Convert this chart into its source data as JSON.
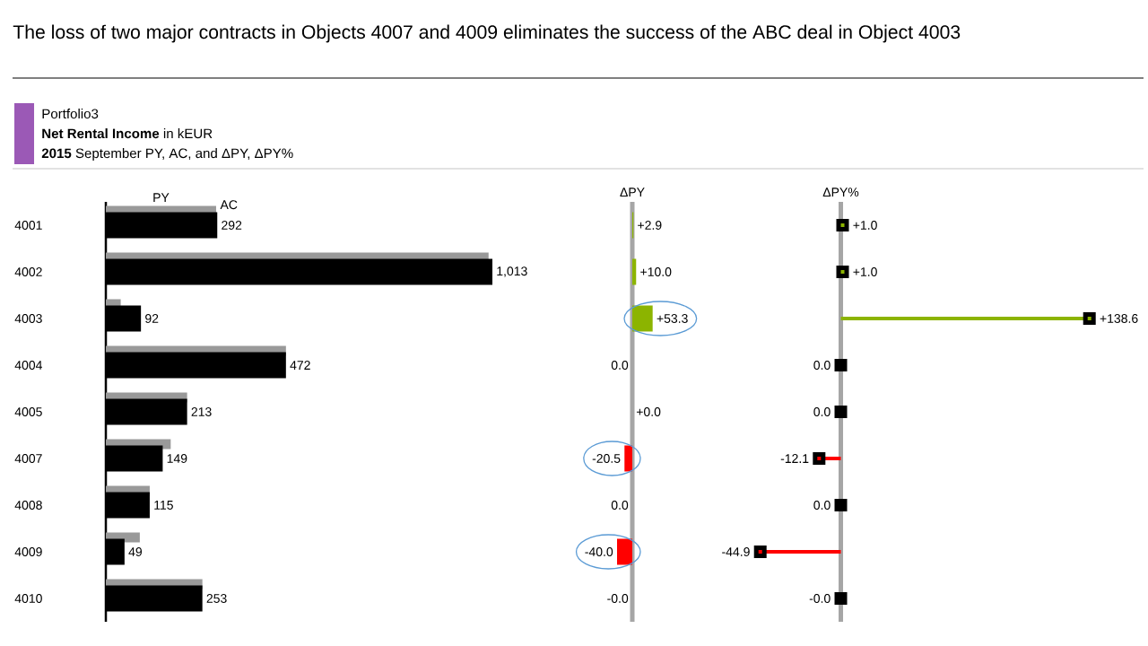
{
  "chart_data": [
    {
      "type": "bar",
      "orientation": "horizontal",
      "title": "The loss of two major contracts in Objects 4007 and 4009 eliminates the success of the ABC deal in Object 4003",
      "annotations": [
        "Portfolio3",
        "**Net Rental Income** in kEUR",
        "**2015** September PY, AC, and ΔPY, ΔPY%"
      ],
      "categories": [
        "4001",
        "4002",
        "4003",
        "4004",
        "4005",
        "4007",
        "4008",
        "4009",
        "4010"
      ],
      "series": [
        {
          "name": "PY",
          "color": "#999999",
          "values": [
            289,
            1003,
            39,
            472,
            213,
            170,
            115,
            89,
            253
          ]
        },
        {
          "name": "AC",
          "color": "#000000",
          "values": [
            292,
            1013,
            92,
            472,
            213,
            149,
            115,
            49,
            253
          ],
          "value_labels": [
            "292",
            "1,013",
            "92",
            "472",
            "213",
            "149",
            "115",
            "49",
            "253"
          ]
        }
      ],
      "tick_labels": "y"
    },
    {
      "type": "bar",
      "orientation": "horizontal",
      "title": "ΔPY",
      "categories": [
        "4001",
        "4002",
        "4003",
        "4004",
        "4005",
        "4007",
        "4008",
        "4009",
        "4010"
      ],
      "values": [
        2.9,
        10.0,
        53.3,
        -0.0,
        0.0,
        -20.5,
        -0.0,
        -40.0,
        -0.0
      ],
      "colors": [
        "#8cb400",
        "#8cb400",
        "#8cb400",
        null,
        null,
        "#ff0000",
        null,
        "#ff0000",
        null
      ],
      "value_labels": [
        "+2.9",
        "+10.0",
        "+53.3",
        "0.0",
        "+0.0",
        "-20.5",
        "0.0",
        "-40.0",
        "-0.0"
      ],
      "tick_labels": false
    },
    {
      "type": "lollipop",
      "orientation": "horizontal",
      "title": "ΔPY%",
      "categories": [
        "4001",
        "4002",
        "4003",
        "4004",
        "4005",
        "4007",
        "4008",
        "4009",
        "4010"
      ],
      "values": [
        1.0,
        1.0,
        138.6,
        -0.0,
        -0.0,
        -12.1,
        -0.0,
        -44.9,
        -0.0
      ],
      "colors": [
        "#8cb400",
        "#8cb400",
        "#8cb400",
        null,
        null,
        "#ff0000",
        null,
        "#ff0000",
        null
      ],
      "value_labels": [
        "+1.0",
        "+1.0",
        "+138.6",
        "0.0",
        "0.0",
        "-12.1",
        "0.0",
        "-44.9",
        "-0.0"
      ],
      "marker": "square",
      "tick_labels": false
    }
  ]
}
